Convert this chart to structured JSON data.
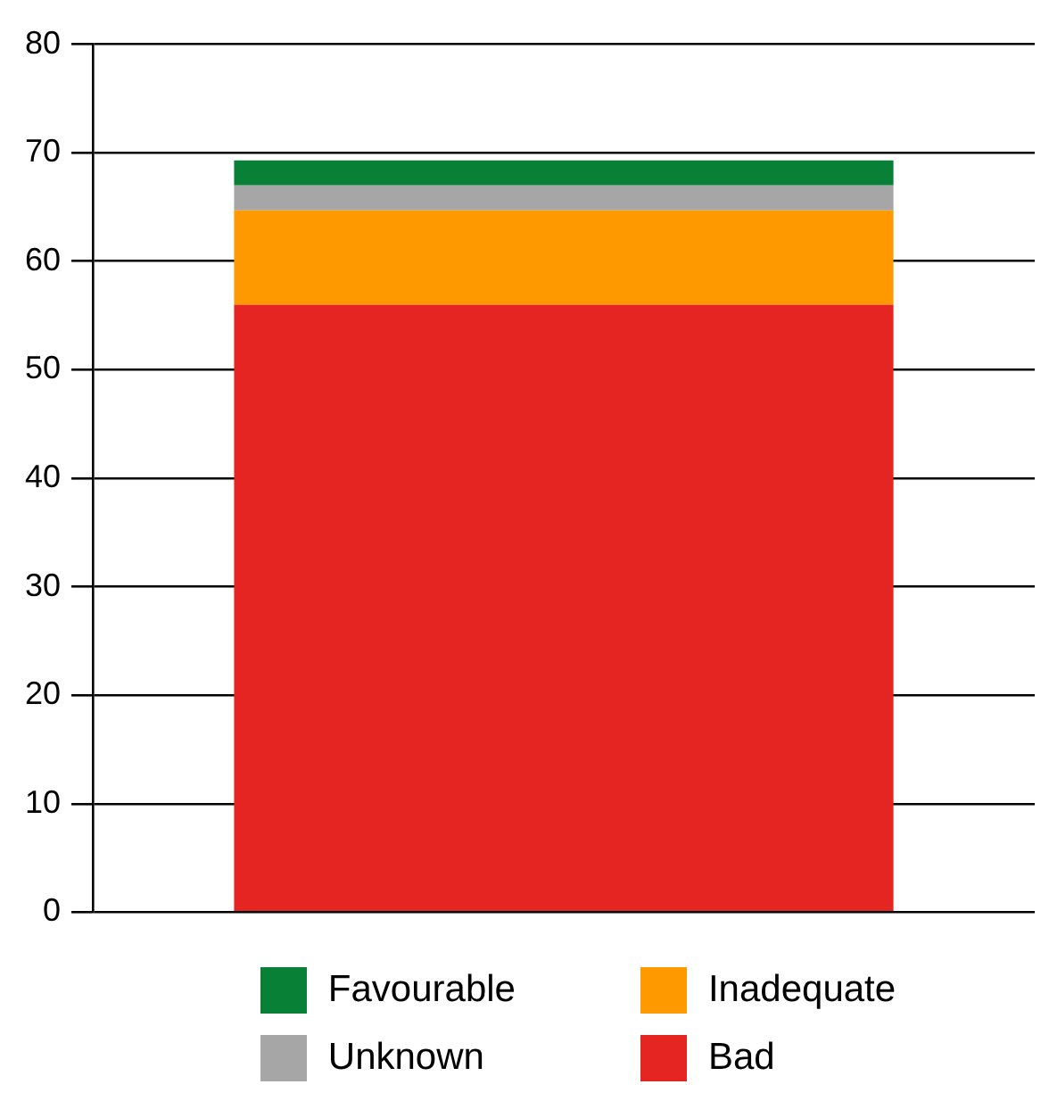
{
  "chart_data": {
    "type": "bar",
    "categories": [
      null
    ],
    "stacked": true,
    "series": [
      {
        "name": "Bad",
        "color": "#e42521",
        "values": [
          56
        ]
      },
      {
        "name": "Inadequate",
        "color": "#fe9900",
        "values": [
          8.7
        ]
      },
      {
        "name": "Unknown",
        "color": "#a6a6a6",
        "values": [
          2.3
        ]
      },
      {
        "name": "Favourable",
        "color": "#088136",
        "values": [
          2.3
        ]
      }
    ],
    "ylim": [
      0,
      80
    ],
    "yticks": [
      0,
      10,
      20,
      30,
      40,
      50,
      60,
      70,
      80
    ],
    "grid": "y",
    "legend": "bottom",
    "tick_labels": "y"
  }
}
